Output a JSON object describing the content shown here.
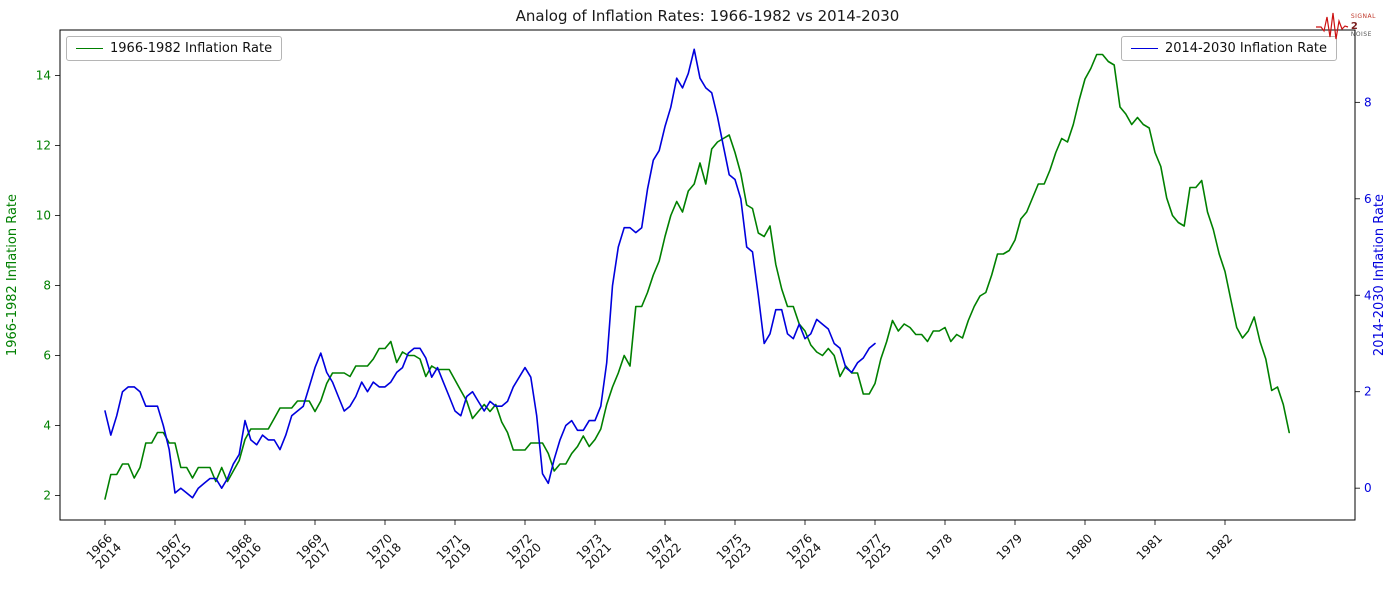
{
  "logo": {
    "line1": "SIGNAL",
    "line2": "2",
    "line3": "NOISE",
    "color": "#cc1111"
  },
  "chart_data": {
    "type": "line",
    "title": "Analog of Inflation Rates: 1966-1982 vs 2014-2030",
    "grid": false,
    "x_tick_labels": [
      [
        "1966",
        "2014"
      ],
      [
        "1967",
        "2015"
      ],
      [
        "1968",
        "2016"
      ],
      [
        "1969",
        "2017"
      ],
      [
        "1970",
        "2018"
      ],
      [
        "1971",
        "2019"
      ],
      [
        "1972",
        "2020"
      ],
      [
        "1973",
        "2021"
      ],
      [
        "1974",
        "2022"
      ],
      [
        "1975",
        "2023"
      ],
      [
        "1976",
        "2024"
      ],
      [
        "1977",
        "2025"
      ],
      [
        "1978"
      ],
      [
        "1979"
      ],
      [
        "1980"
      ],
      [
        "1981"
      ],
      [
        "1982"
      ]
    ],
    "months_per_tick": 12,
    "left_axis": {
      "label": "1966-1982 Inflation Rate",
      "color": "#008000",
      "ticks": [
        2,
        4,
        6,
        8,
        10,
        12,
        14
      ],
      "range": [
        1.3,
        15.3
      ]
    },
    "right_axis": {
      "label": "2014-2030 Inflation Rate",
      "color": "#0000dd",
      "ticks": [
        0,
        2,
        4,
        6,
        8
      ],
      "range": [
        -0.66,
        9.5
      ]
    },
    "legend": [
      {
        "label": "1966-1982 Inflation Rate",
        "color": "#008000",
        "position": "upper left"
      },
      {
        "label": "2014-2030 Inflation Rate",
        "color": "#0000dd",
        "position": "upper right"
      }
    ],
    "series": [
      {
        "name": "1966-1982 Inflation Rate",
        "axis": "left",
        "color": "#008000",
        "start": "1966-01",
        "interval": "monthly",
        "values": [
          1.9,
          2.6,
          2.6,
          2.9,
          2.9,
          2.5,
          2.8,
          3.5,
          3.5,
          3.8,
          3.8,
          3.5,
          3.5,
          2.8,
          2.8,
          2.5,
          2.8,
          2.8,
          2.8,
          2.4,
          2.8,
          2.4,
          2.7,
          3.0,
          3.6,
          3.9,
          3.9,
          3.9,
          3.9,
          4.2,
          4.5,
          4.5,
          4.5,
          4.7,
          4.7,
          4.7,
          4.4,
          4.7,
          5.2,
          5.5,
          5.5,
          5.5,
          5.4,
          5.7,
          5.7,
          5.7,
          5.9,
          6.2,
          6.2,
          6.4,
          5.8,
          6.1,
          6.0,
          6.0,
          5.9,
          5.4,
          5.7,
          5.6,
          5.6,
          5.6,
          5.3,
          5.0,
          4.7,
          4.2,
          4.4,
          4.6,
          4.4,
          4.6,
          4.1,
          3.8,
          3.3,
          3.3,
          3.3,
          3.5,
          3.5,
          3.5,
          3.2,
          2.7,
          2.9,
          2.9,
          3.2,
          3.4,
          3.7,
          3.4,
          3.6,
          3.9,
          4.6,
          5.1,
          5.5,
          6.0,
          5.7,
          7.4,
          7.4,
          7.8,
          8.3,
          8.7,
          9.4,
          10.0,
          10.4,
          10.1,
          10.7,
          10.9,
          11.5,
          10.9,
          11.9,
          12.1,
          12.2,
          12.3,
          11.8,
          11.2,
          10.3,
          10.2,
          9.5,
          9.4,
          9.7,
          8.6,
          7.9,
          7.4,
          7.4,
          6.9,
          6.7,
          6.3,
          6.1,
          6.0,
          6.2,
          6.0,
          5.4,
          5.7,
          5.5,
          5.5,
          4.9,
          4.9,
          5.2,
          5.9,
          6.4,
          7.0,
          6.7,
          6.9,
          6.8,
          6.6,
          6.6,
          6.4,
          6.7,
          6.7,
          6.8,
          6.4,
          6.6,
          6.5,
          7.0,
          7.4,
          7.7,
          7.8,
          8.3,
          8.9,
          8.9,
          9.0,
          9.3,
          9.9,
          10.1,
          10.5,
          10.9,
          10.9,
          11.3,
          11.8,
          12.2,
          12.1,
          12.6,
          13.3,
          13.9,
          14.2,
          14.6,
          14.6,
          14.4,
          14.3,
          13.1,
          12.9,
          12.6,
          12.8,
          12.6,
          12.5,
          11.8,
          11.4,
          10.5,
          10.0,
          9.8,
          9.7,
          10.8,
          10.8,
          11.0,
          10.1,
          9.6,
          8.9,
          8.4,
          7.6,
          6.8,
          6.5,
          6.7,
          7.1,
          6.4,
          5.9,
          5.0,
          5.1,
          4.6,
          3.8
        ]
      },
      {
        "name": "2014-2030 Inflation Rate",
        "axis": "right",
        "color": "#0000dd",
        "start": "2014-01",
        "interval": "monthly",
        "values": [
          1.6,
          1.1,
          1.5,
          2.0,
          2.1,
          2.1,
          2.0,
          1.7,
          1.7,
          1.7,
          1.3,
          0.8,
          -0.1,
          0.0,
          -0.1,
          -0.2,
          0.0,
          0.1,
          0.2,
          0.2,
          0.0,
          0.2,
          0.5,
          0.7,
          1.4,
          1.0,
          0.9,
          1.1,
          1.0,
          1.0,
          0.8,
          1.1,
          1.5,
          1.6,
          1.7,
          2.1,
          2.5,
          2.8,
          2.4,
          2.2,
          1.9,
          1.6,
          1.7,
          1.9,
          2.2,
          2.0,
          2.2,
          2.1,
          2.1,
          2.2,
          2.4,
          2.5,
          2.8,
          2.9,
          2.9,
          2.7,
          2.3,
          2.5,
          2.2,
          1.9,
          1.6,
          1.5,
          1.9,
          2.0,
          1.8,
          1.6,
          1.8,
          1.7,
          1.7,
          1.8,
          2.1,
          2.3,
          2.5,
          2.3,
          1.5,
          0.3,
          0.1,
          0.6,
          1.0,
          1.3,
          1.4,
          1.2,
          1.2,
          1.4,
          1.4,
          1.7,
          2.6,
          4.2,
          5.0,
          5.4,
          5.4,
          5.3,
          5.4,
          6.2,
          6.8,
          7.0,
          7.5,
          7.9,
          8.5,
          8.3,
          8.6,
          9.1,
          8.5,
          8.3,
          8.2,
          7.7,
          7.1,
          6.5,
          6.4,
          6.0,
          5.0,
          4.9,
          4.0,
          3.0,
          3.2,
          3.7,
          3.7,
          3.2,
          3.1,
          3.4,
          3.1,
          3.2,
          3.5,
          3.4,
          3.3,
          3.0,
          2.9,
          2.5,
          2.4,
          2.6,
          2.7,
          2.9,
          3.0
        ]
      }
    ]
  }
}
